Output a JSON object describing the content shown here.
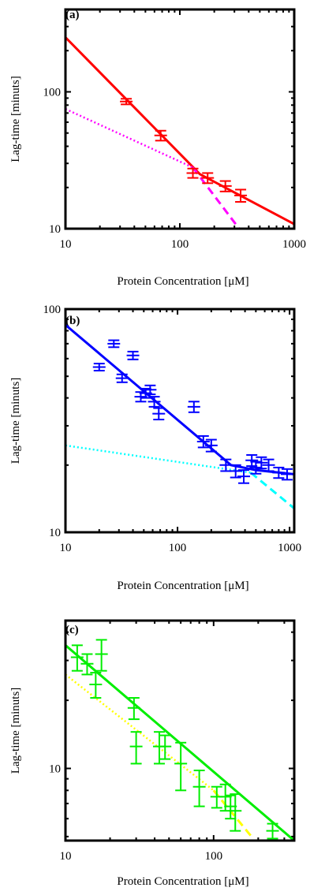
{
  "chart_data": [
    {
      "type": "scatter",
      "panel_label": "(a)",
      "xlabel": "Protein Concentration [μM]",
      "ylabel": "Lag-time [minuts]",
      "xscale": "log",
      "yscale": "log",
      "xlim": [
        10,
        1000
      ],
      "ylim": [
        10,
        400
      ],
      "xticks": [
        {
          "value": 10,
          "label": "10"
        },
        {
          "value": 100,
          "label": "100"
        },
        {
          "value": 1000,
          "label": "1000"
        }
      ],
      "yticks": [
        {
          "value": 10,
          "label": "10"
        },
        {
          "value": 100,
          "label": "100"
        }
      ],
      "grid": false,
      "legend": "none",
      "points": [
        {
          "x": 34,
          "y": 85,
          "yerr": 4
        },
        {
          "x": 68,
          "y": 48,
          "yerr": 4
        },
        {
          "x": 130,
          "y": 25.5,
          "yerr": 2
        },
        {
          "x": 175,
          "y": 23.5,
          "yerr": 2
        },
        {
          "x": 250,
          "y": 20.5,
          "yerr": 1.8
        },
        {
          "x": 340,
          "y": 17.5,
          "yerr": 1.8
        }
      ],
      "fit_lines": [
        {
          "style": "solid",
          "color": "#ff0000",
          "points": [
            [
              10,
              250
            ],
            [
              150,
              25
            ],
            [
              1000,
              10.8
            ]
          ]
        },
        {
          "style": "dotted",
          "color": "#ff00ff",
          "points": [
            [
              10,
              75
            ],
            [
              130,
              28
            ]
          ]
        },
        {
          "style": "dashed",
          "color": "#ff00ff",
          "points": [
            [
              130,
              28
            ],
            [
              330,
              10
            ]
          ]
        }
      ],
      "marker_color": "#ff0000"
    },
    {
      "type": "scatter",
      "panel_label": "(b)",
      "xlabel": "Protein Concentration [μM]",
      "ylabel": "Lag-time [minuts]",
      "xscale": "log",
      "yscale": "log",
      "xlim": [
        10,
        1100
      ],
      "ylim": [
        10,
        100
      ],
      "xticks": [
        {
          "value": 10,
          "label": "10"
        },
        {
          "value": 100,
          "label": "100"
        },
        {
          "value": 1000,
          "label": "1000"
        }
      ],
      "yticks": [
        {
          "value": 10,
          "label": "10"
        },
        {
          "value": 100,
          "label": "100"
        }
      ],
      "grid": false,
      "legend": "none",
      "points": [
        {
          "x": 20,
          "y": 55,
          "yerr": 2
        },
        {
          "x": 27,
          "y": 70,
          "yerr": 2.5
        },
        {
          "x": 32,
          "y": 49,
          "yerr": 2
        },
        {
          "x": 40,
          "y": 62,
          "yerr": 2.5
        },
        {
          "x": 47,
          "y": 40.5,
          "yerr": 2
        },
        {
          "x": 52,
          "y": 42,
          "yerr": 2
        },
        {
          "x": 57,
          "y": 43.5,
          "yerr": 2
        },
        {
          "x": 62,
          "y": 38.5,
          "yerr": 2
        },
        {
          "x": 68,
          "y": 34,
          "yerr": 2
        },
        {
          "x": 140,
          "y": 36.5,
          "yerr": 2
        },
        {
          "x": 170,
          "y": 25.5,
          "yerr": 1.5
        },
        {
          "x": 200,
          "y": 24.5,
          "yerr": 1.5
        },
        {
          "x": 270,
          "y": 20,
          "yerr": 1.2
        },
        {
          "x": 330,
          "y": 18.8,
          "yerr": 1.2
        },
        {
          "x": 390,
          "y": 17.8,
          "yerr": 1.2
        },
        {
          "x": 460,
          "y": 21,
          "yerr": 1.2
        },
        {
          "x": 500,
          "y": 19.5,
          "yerr": 1.2
        },
        {
          "x": 560,
          "y": 20.5,
          "yerr": 1.2
        },
        {
          "x": 650,
          "y": 20,
          "yerr": 1.2
        },
        {
          "x": 800,
          "y": 18.5,
          "yerr": 1
        },
        {
          "x": 950,
          "y": 18.2,
          "yerr": 1
        }
      ],
      "fit_lines": [
        {
          "style": "solid",
          "color": "#0000ff",
          "points": [
            [
              10,
              85
            ],
            [
              300,
              20
            ],
            [
              500,
              19
            ],
            [
              1100,
              18.2
            ]
          ]
        },
        {
          "style": "dotted",
          "color": "#00ffff",
          "points": [
            [
              10,
              24.5
            ],
            [
              450,
              18.5
            ]
          ]
        },
        {
          "style": "dashed",
          "color": "#00ffff",
          "points": [
            [
              450,
              18.5
            ],
            [
              1100,
              12.8
            ]
          ]
        }
      ],
      "marker_color": "#0000ff"
    },
    {
      "type": "scatter",
      "panel_label": "(c)",
      "xlabel": "Protein Concentration [μM]",
      "ylabel": "Lag-time [minuts]",
      "xscale": "log",
      "yscale": "log",
      "xlim": [
        10,
        350
      ],
      "ylim": [
        4.8,
        45
      ],
      "xticks": [
        {
          "value": 10,
          "label": "10"
        },
        {
          "value": 100,
          "label": "100"
        }
      ],
      "yticks": [
        {
          "value": 10,
          "label": "10"
        }
      ],
      "grid": false,
      "legend": "none",
      "points": [
        {
          "x": 12,
          "y": 31,
          "yerr": 4
        },
        {
          "x": 14,
          "y": 29,
          "yerr": 3
        },
        {
          "x": 16,
          "y": 23.5,
          "yerr": 3
        },
        {
          "x": 17.5,
          "y": 32,
          "yerr": 5
        },
        {
          "x": 29,
          "y": 18.5,
          "yerr": 2
        },
        {
          "x": 30,
          "y": 12.5,
          "yerr": 2
        },
        {
          "x": 43,
          "y": 12.5,
          "yerr": 2
        },
        {
          "x": 47,
          "y": 12.5,
          "yerr": 1.5
        },
        {
          "x": 60,
          "y": 10.5,
          "yerr": 2.5
        },
        {
          "x": 80,
          "y": 8.3,
          "yerr": 1.5
        },
        {
          "x": 105,
          "y": 7.5,
          "yerr": 0.8
        },
        {
          "x": 120,
          "y": 7.5,
          "yerr": 1
        },
        {
          "x": 130,
          "y": 6.8,
          "yerr": 0.8
        },
        {
          "x": 140,
          "y": 6.5,
          "yerr": 1.2
        },
        {
          "x": 250,
          "y": 5.3,
          "yerr": 0.4
        }
      ],
      "fit_lines": [
        {
          "style": "solid",
          "color": "#00ee00",
          "points": [
            [
              10,
              35
            ],
            [
              350,
              4.8
            ]
          ]
        },
        {
          "style": "dotted",
          "color": "#ffff00",
          "points": [
            [
              10,
              26
            ],
            [
              100,
              8
            ]
          ]
        },
        {
          "style": "dashed",
          "color": "#ffff00",
          "points": [
            [
              100,
              8
            ],
            [
              180,
              5
            ]
          ]
        }
      ],
      "marker_color": "#00ee00"
    }
  ]
}
